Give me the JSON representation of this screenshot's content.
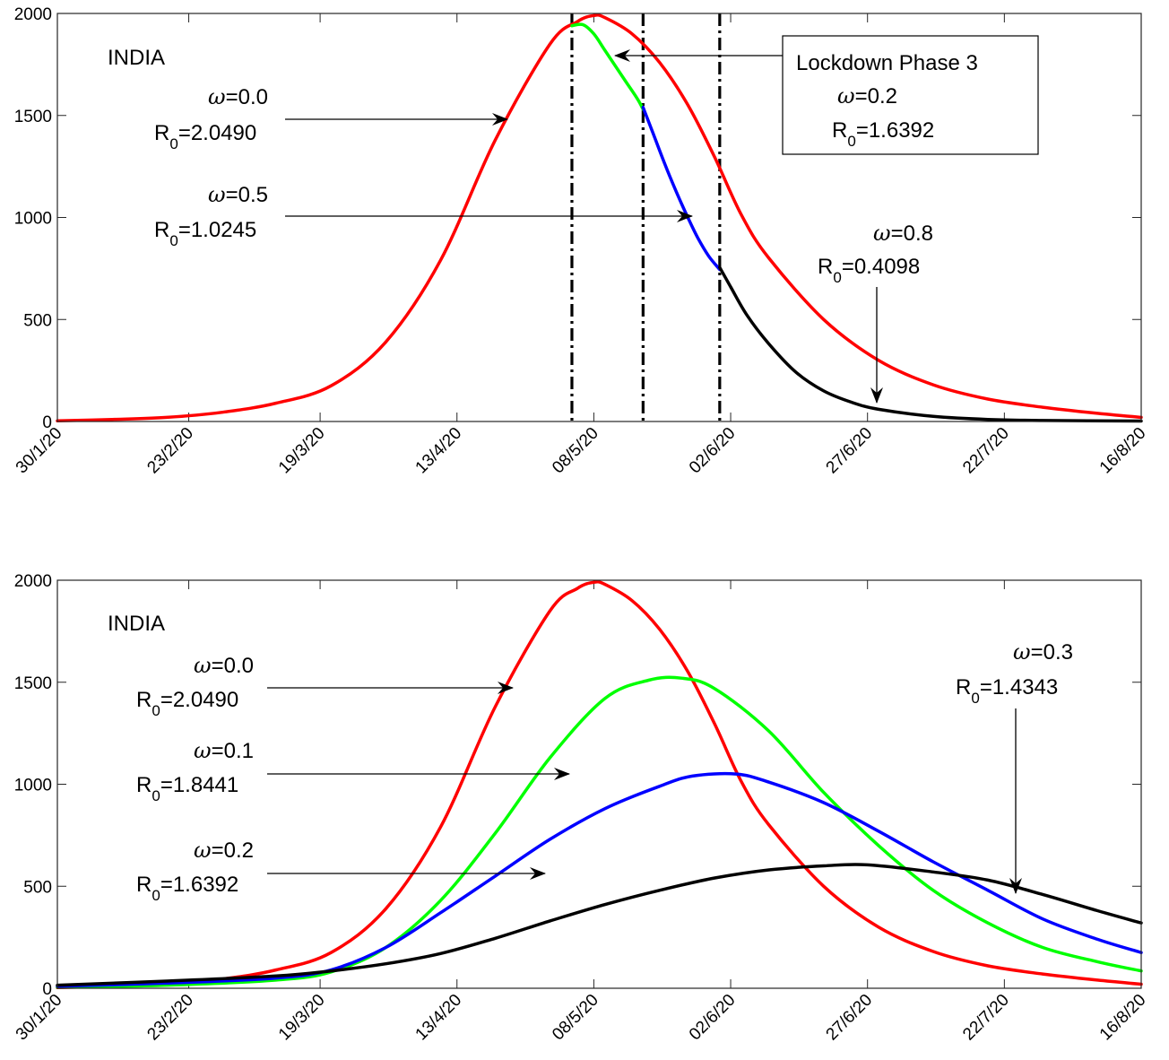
{
  "chart_data": [
    {
      "type": "line",
      "x_tick_labels": [
        "30/1/20",
        "23/2/20",
        "19/3/20",
        "13/4/20",
        "08/5/20",
        "02/6/20",
        "27/6/20",
        "22/7/20",
        "16/8/20"
      ],
      "x_ticks_day": [
        0,
        24,
        48,
        73,
        98,
        123,
        148,
        173,
        198
      ],
      "ylim": [
        0,
        2000
      ],
      "y_ticks": [
        0,
        500,
        1000,
        1500,
        2000
      ],
      "y_tick_labels": [
        "0",
        "500",
        "1000",
        "1500",
        "2000"
      ],
      "region_label": "INDIA",
      "vlines_day": [
        94,
        107,
        121
      ],
      "series": [
        {
          "color": "#ff0000",
          "x_day": [
            0,
            10,
            20,
            30,
            40,
            50,
            60,
            70,
            80,
            90,
            95,
            98,
            100,
            105,
            110,
            115,
            120,
            125,
            130,
            140,
            150,
            160,
            170,
            180,
            190,
            198
          ],
          "values": [
            3,
            10,
            20,
            45,
            90,
            175,
            390,
            790,
            1380,
            1850,
            1960,
            1990,
            1980,
            1900,
            1760,
            1560,
            1300,
            1010,
            800,
            500,
            300,
            180,
            110,
            70,
            40,
            20
          ]
        },
        {
          "color": "#00ff00",
          "x_day": [
            94,
            96,
            98,
            100,
            102,
            104,
            106,
            107
          ],
          "values": [
            1940,
            1945,
            1900,
            1820,
            1740,
            1660,
            1580,
            1530
          ]
        },
        {
          "color": "#0000ff",
          "x_day": [
            107,
            109,
            111,
            113,
            115,
            117,
            119,
            121
          ],
          "values": [
            1540,
            1400,
            1260,
            1130,
            1010,
            900,
            810,
            745
          ]
        },
        {
          "color": "#000000",
          "x_day": [
            121,
            123,
            126,
            130,
            135,
            140,
            145,
            150,
            160,
            170,
            180,
            198
          ],
          "values": [
            755,
            660,
            520,
            380,
            240,
            150,
            95,
            60,
            25,
            10,
            5,
            2
          ]
        }
      ],
      "annotations": [
        {
          "omega": "=0.0",
          "r0": "=2.0490"
        },
        {
          "omega": "=0.5",
          "r0": "=1.0245"
        },
        {
          "omega": "=0.8",
          "r0": "=0.4098"
        }
      ],
      "box_annotation": {
        "title": "Lockdown Phase 3",
        "omega": "=0.2",
        "r0": "=1.6392"
      }
    },
    {
      "type": "line",
      "x_tick_labels": [
        "30/1/20",
        "23/2/20",
        "19/3/20",
        "13/4/20",
        "08/5/20",
        "02/6/20",
        "27/6/20",
        "22/7/20",
        "16/8/20"
      ],
      "x_ticks_day": [
        0,
        24,
        48,
        73,
        98,
        123,
        148,
        173,
        198
      ],
      "ylim": [
        0,
        2000
      ],
      "y_ticks": [
        0,
        500,
        1000,
        1500,
        2000
      ],
      "y_tick_labels": [
        "0",
        "500",
        "1000",
        "1500",
        "2000"
      ],
      "region_label": "INDIA",
      "series": [
        {
          "color": "#ff0000",
          "x_day": [
            0,
            10,
            20,
            30,
            40,
            50,
            60,
            70,
            80,
            90,
            95,
            98,
            100,
            105,
            110,
            115,
            120,
            125,
            130,
            140,
            150,
            160,
            170,
            180,
            190,
            198
          ],
          "values": [
            3,
            10,
            20,
            45,
            90,
            175,
            390,
            790,
            1380,
            1850,
            1960,
            1990,
            1980,
            1900,
            1760,
            1560,
            1300,
            1010,
            800,
            500,
            300,
            180,
            110,
            70,
            40,
            20
          ]
        },
        {
          "color": "#00ff00",
          "x_day": [
            0,
            20,
            40,
            50,
            60,
            70,
            80,
            90,
            100,
            108,
            114,
            120,
            130,
            140,
            150,
            160,
            170,
            180,
            190,
            198
          ],
          "values": [
            5,
            15,
            40,
            80,
            200,
            430,
            760,
            1130,
            1420,
            1510,
            1520,
            1470,
            1260,
            960,
            700,
            480,
            320,
            200,
            130,
            85
          ]
        },
        {
          "color": "#0000ff",
          "x_day": [
            0,
            20,
            40,
            50,
            60,
            70,
            80,
            90,
            100,
            110,
            116,
            124,
            130,
            140,
            150,
            160,
            170,
            180,
            190,
            198
          ],
          "values": [
            10,
            25,
            50,
            90,
            200,
            370,
            550,
            730,
            880,
            990,
            1040,
            1050,
            1010,
            910,
            770,
            620,
            480,
            340,
            240,
            175
          ]
        },
        {
          "color": "#000000",
          "x_day": [
            0,
            20,
            40,
            50,
            60,
            70,
            80,
            90,
            100,
            110,
            120,
            130,
            140,
            148,
            160,
            170,
            180,
            190,
            198
          ],
          "values": [
            15,
            35,
            60,
            85,
            120,
            170,
            245,
            330,
            410,
            480,
            540,
            580,
            600,
            605,
            570,
            530,
            460,
            380,
            320
          ]
        }
      ],
      "annotations": [
        {
          "omega": "=0.0",
          "r0": "=2.0490"
        },
        {
          "omega": "=0.1",
          "r0": "=1.8441"
        },
        {
          "omega": "=0.2",
          "r0": "=1.6392"
        },
        {
          "omega": "=0.3",
          "r0": "=1.4343"
        }
      ]
    }
  ]
}
